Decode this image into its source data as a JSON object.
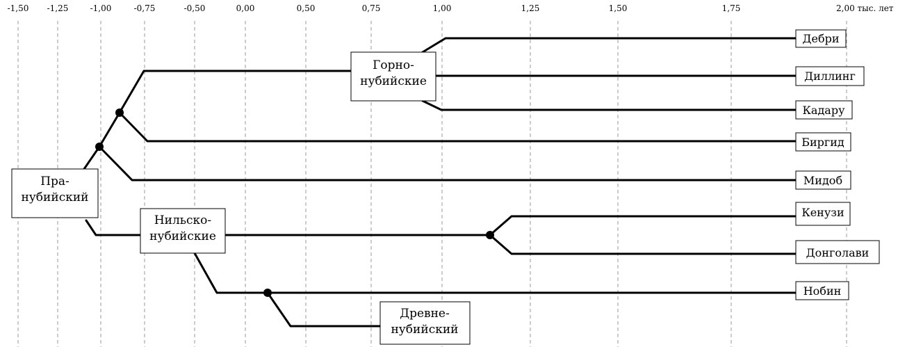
{
  "axis": {
    "ticks": [
      {
        "label": "-1,50",
        "value": -1.5
      },
      {
        "label": "-1,25",
        "value": -1.25
      },
      {
        "label": "-1,00",
        "value": -1.0
      },
      {
        "label": "-0,75",
        "value": -0.75
      },
      {
        "label": "-0,50",
        "value": -0.5
      },
      {
        "label": "0,00",
        "value": 0.0
      },
      {
        "label": "0,50",
        "value": 0.5
      },
      {
        "label": "0,75",
        "value": 0.75
      },
      {
        "label": "1,00",
        "value": 1.0
      },
      {
        "label": "1,25",
        "value": 1.25
      },
      {
        "label": "1,50",
        "value": 1.5
      },
      {
        "label": "1,75",
        "value": 1.75
      },
      {
        "label": "2,00 тыс. лет",
        "value": 2.0
      }
    ]
  },
  "groups": {
    "proto": "Пра-\nнубийский",
    "hill": "Горно-\nнубийские",
    "nile": "Нильско-\nнубийские",
    "old": "Древне-\nнубийский"
  },
  "languages": {
    "debri": "Дебри",
    "dilling": "Диллинг",
    "kadaru": "Кадару",
    "birgid": "Биргид",
    "midob": "Мидоб",
    "kenuzi": "Кенузи",
    "dongolawi": "Донголави",
    "nobiin": "Нобин"
  },
  "colors": {
    "lines": "#000000",
    "grid": "#9a9a9a"
  }
}
